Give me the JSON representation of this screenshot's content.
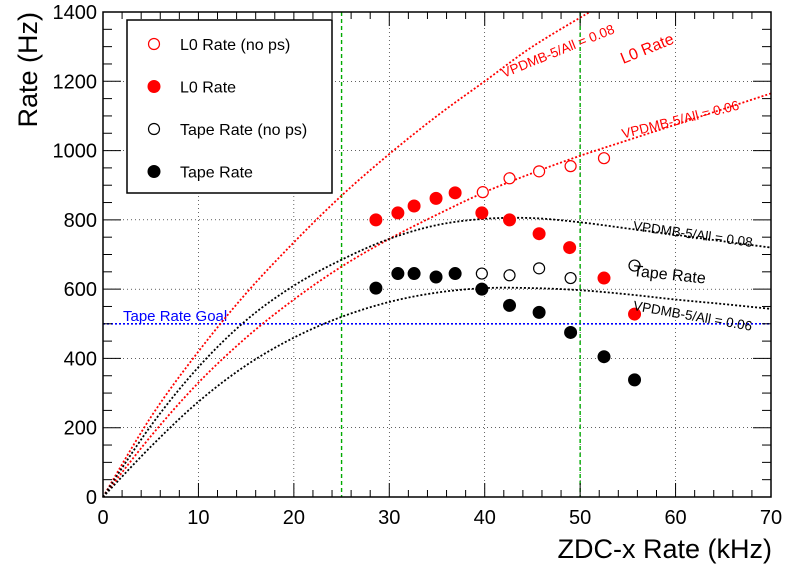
{
  "chart_data": {
    "type": "scatter",
    "xlabel": "ZDC-x Rate (kHz)",
    "ylabel": "Rate (Hz)",
    "xlim": [
      0,
      70
    ],
    "ylim": [
      0,
      1400
    ],
    "xticks": [
      0,
      10,
      20,
      30,
      40,
      50,
      60,
      70
    ],
    "yticks": [
      0,
      200,
      400,
      600,
      800,
      1000,
      1200,
      1400
    ],
    "grid": "dotted",
    "legend_position": "top-left",
    "legend": [
      {
        "label": "L0 Rate (no ps)",
        "series": "l0_nops"
      },
      {
        "label": "L0 Rate",
        "series": "l0"
      },
      {
        "label": "Tape Rate (no ps)",
        "series": "tape_nops"
      },
      {
        "label": "Tape Rate",
        "series": "tape"
      }
    ],
    "series": [
      {
        "name": "L0 Rate (no ps)",
        "key": "l0_nops",
        "color": "#ff0000",
        "marker": "open-circle",
        "x": [
          39.8,
          42.6,
          45.7,
          49.0,
          52.5
        ],
        "y": [
          880,
          920,
          940,
          955,
          978
        ]
      },
      {
        "name": "L0 Rate",
        "key": "l0",
        "color": "#ff0000",
        "marker": "filled-circle",
        "x": [
          28.6,
          30.9,
          32.6,
          34.9,
          36.9,
          39.7,
          42.6,
          45.7,
          48.9,
          52.5,
          55.7
        ],
        "y": [
          800,
          820,
          840,
          862,
          878,
          820,
          800,
          760,
          720,
          632,
          528
        ]
      },
      {
        "name": "Tape Rate (no ps)",
        "key": "tape_nops",
        "color": "#000000",
        "marker": "open-circle",
        "x": [
          39.7,
          42.6,
          45.7,
          49.0,
          55.7
        ],
        "y": [
          645,
          640,
          660,
          632,
          668
        ]
      },
      {
        "name": "Tape Rate",
        "key": "tape",
        "color": "#000000",
        "marker": "filled-circle",
        "x": [
          28.6,
          30.9,
          32.6,
          34.9,
          36.9,
          39.7,
          42.6,
          45.7,
          49.0,
          52.5,
          55.7
        ],
        "y": [
          603,
          645,
          645,
          635,
          645,
          600,
          553,
          533,
          475,
          405,
          338
        ]
      }
    ],
    "curves": [
      {
        "key": "l0_008",
        "color": "#ff0000",
        "style": "dotted",
        "x": [
          0,
          5,
          10,
          15,
          20,
          25,
          30,
          35,
          40,
          45,
          51
        ],
        "y": [
          0,
          230,
          420,
          588,
          735,
          870,
          990,
          1100,
          1200,
          1300,
          1400
        ]
      },
      {
        "key": "l0_006",
        "color": "#ff0000",
        "style": "dotted",
        "x": [
          0,
          5,
          10,
          15,
          20,
          25,
          30,
          35,
          40,
          45,
          50,
          55,
          60,
          65,
          70
        ],
        "y": [
          0,
          175,
          330,
          460,
          570,
          665,
          745,
          815,
          880,
          935,
          985,
          1030,
          1075,
          1120,
          1165
        ]
      },
      {
        "key": "tape_008",
        "color": "#000000",
        "style": "dotted",
        "x": [
          0,
          5,
          10,
          15,
          20,
          25,
          30,
          35,
          40,
          45,
          50,
          55,
          60,
          65,
          70
        ],
        "y": [
          0,
          205,
          375,
          510,
          610,
          685,
          745,
          785,
          803,
          805,
          793,
          775,
          757,
          738,
          720
        ]
      },
      {
        "key": "tape_006",
        "color": "#000000",
        "style": "dotted",
        "x": [
          0,
          5,
          10,
          15,
          20,
          25,
          30,
          35,
          40,
          45,
          50,
          55,
          60,
          65,
          70
        ],
        "y": [
          0,
          145,
          275,
          380,
          460,
          520,
          563,
          590,
          603,
          603,
          597,
          585,
          570,
          557,
          543
        ]
      }
    ],
    "reference_lines": [
      {
        "orientation": "horizontal",
        "value": 500,
        "color": "#0000ff",
        "label": "Tape Rate Goal"
      },
      {
        "orientation": "vertical",
        "value": 25,
        "color": "#00aa00"
      },
      {
        "orientation": "vertical",
        "value": 50,
        "color": "#00aa00"
      }
    ],
    "annotations": [
      {
        "text": "VPDMB-5/All = 0.08",
        "color": "#ff0000",
        "x": 42,
        "y": 1210,
        "rotate": -22
      },
      {
        "text": "L0 Rate",
        "color": "#ff0000",
        "x": 54.5,
        "y": 1250,
        "rotate": -22
      },
      {
        "text": "VPDMB-5/All = 0.06",
        "color": "#ff0000",
        "x": 54.5,
        "y": 1035,
        "rotate": -14
      },
      {
        "text": "VPDMB-5/All = 0.08",
        "color": "#000000",
        "x": 55.5,
        "y": 770,
        "rotate": 8
      },
      {
        "text": "Tape Rate",
        "color": "#000000",
        "x": 55.5,
        "y": 638,
        "rotate": 6
      },
      {
        "text": "VPDMB-5/All = 0.06",
        "color": "#000000",
        "x": 55.5,
        "y": 540,
        "rotate": 10
      }
    ]
  }
}
